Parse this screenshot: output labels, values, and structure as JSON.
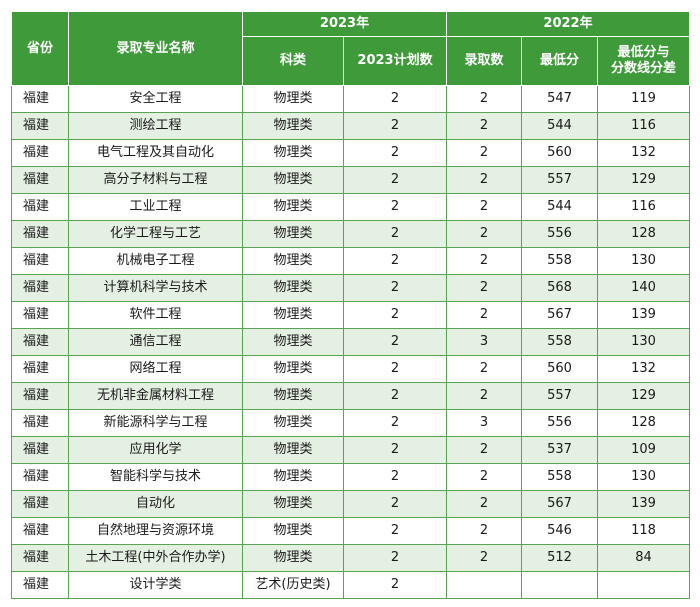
{
  "header": {
    "province": "省份",
    "major": "录取专业名称",
    "year2023": "2023年",
    "year2022": "2022年",
    "subject": "科类",
    "plan2023": "2023计划数",
    "admitted": "录取数",
    "min_score": "最低分",
    "diff_line1": "最低分与",
    "diff_line2": "分数线分差"
  },
  "rows": [
    {
      "province": "福建",
      "major": "安全工程",
      "subject": "物理类",
      "plan": "2",
      "admitted": "2",
      "min": "547",
      "diff": "119"
    },
    {
      "province": "福建",
      "major": "测绘工程",
      "subject": "物理类",
      "plan": "2",
      "admitted": "2",
      "min": "544",
      "diff": "116"
    },
    {
      "province": "福建",
      "major": "电气工程及其自动化",
      "subject": "物理类",
      "plan": "2",
      "admitted": "2",
      "min": "560",
      "diff": "132"
    },
    {
      "province": "福建",
      "major": "高分子材料与工程",
      "subject": "物理类",
      "plan": "2",
      "admitted": "2",
      "min": "557",
      "diff": "129"
    },
    {
      "province": "福建",
      "major": "工业工程",
      "subject": "物理类",
      "plan": "2",
      "admitted": "2",
      "min": "544",
      "diff": "116"
    },
    {
      "province": "福建",
      "major": "化学工程与工艺",
      "subject": "物理类",
      "plan": "2",
      "admitted": "2",
      "min": "556",
      "diff": "128"
    },
    {
      "province": "福建",
      "major": "机械电子工程",
      "subject": "物理类",
      "plan": "2",
      "admitted": "2",
      "min": "558",
      "diff": "130"
    },
    {
      "province": "福建",
      "major": "计算机科学与技术",
      "subject": "物理类",
      "plan": "2",
      "admitted": "2",
      "min": "568",
      "diff": "140"
    },
    {
      "province": "福建",
      "major": "软件工程",
      "subject": "物理类",
      "plan": "2",
      "admitted": "2",
      "min": "567",
      "diff": "139"
    },
    {
      "province": "福建",
      "major": "通信工程",
      "subject": "物理类",
      "plan": "2",
      "admitted": "3",
      "min": "558",
      "diff": "130"
    },
    {
      "province": "福建",
      "major": "网络工程",
      "subject": "物理类",
      "plan": "2",
      "admitted": "2",
      "min": "560",
      "diff": "132"
    },
    {
      "province": "福建",
      "major": "无机非金属材料工程",
      "subject": "物理类",
      "plan": "2",
      "admitted": "2",
      "min": "557",
      "diff": "129"
    },
    {
      "province": "福建",
      "major": "新能源科学与工程",
      "subject": "物理类",
      "plan": "2",
      "admitted": "3",
      "min": "556",
      "diff": "128"
    },
    {
      "province": "福建",
      "major": "应用化学",
      "subject": "物理类",
      "plan": "2",
      "admitted": "2",
      "min": "537",
      "diff": "109"
    },
    {
      "province": "福建",
      "major": "智能科学与技术",
      "subject": "物理类",
      "plan": "2",
      "admitted": "2",
      "min": "558",
      "diff": "130"
    },
    {
      "province": "福建",
      "major": "自动化",
      "subject": "物理类",
      "plan": "2",
      "admitted": "2",
      "min": "567",
      "diff": "139"
    },
    {
      "province": "福建",
      "major": "自然地理与资源环境",
      "subject": "物理类",
      "plan": "2",
      "admitted": "2",
      "min": "546",
      "diff": "118"
    },
    {
      "province": "福建",
      "major": "土木工程(中外合作办学)",
      "subject": "物理类",
      "plan": "2",
      "admitted": "2",
      "min": "512",
      "diff": "84"
    },
    {
      "province": "福建",
      "major": "设计学类",
      "subject": "艺术(历史类)",
      "plan": "2",
      "admitted": "",
      "min": "",
      "diff": ""
    }
  ],
  "colors": {
    "header_bg": "#3f9a3a",
    "stripe": "#e4f0e1",
    "border": "#5aa354"
  }
}
